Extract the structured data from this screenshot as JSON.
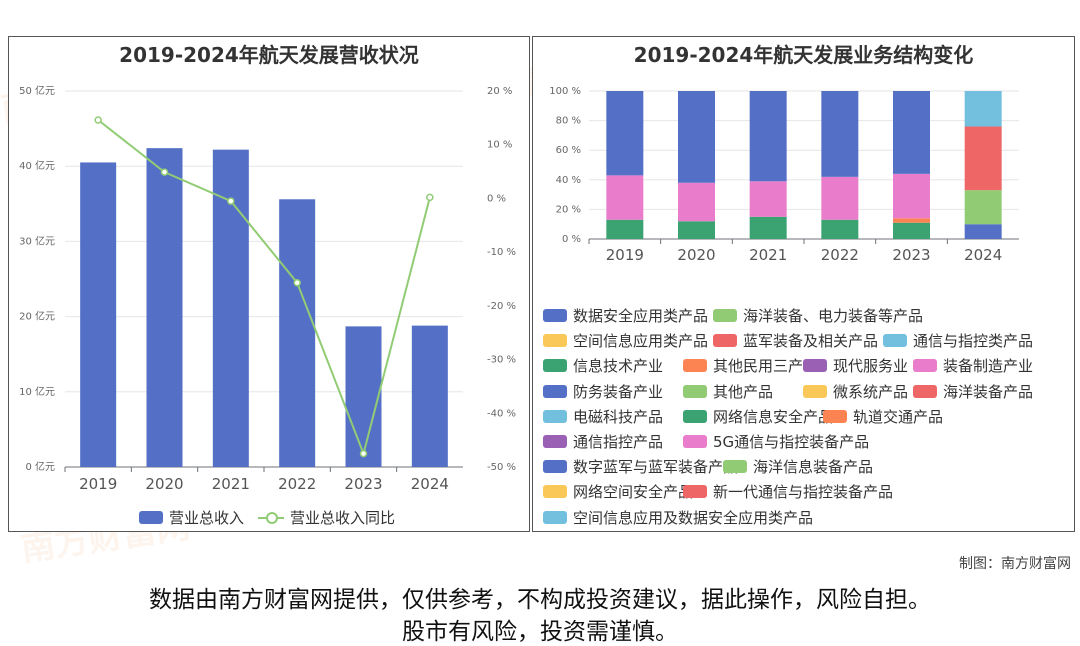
{
  "watermark": "南方财富网",
  "footer_credit": "制图：南方财富网",
  "disclaimer": {
    "line1": "数据由南方财富网提供，仅供参考，不构成投资建议，据此操作，风险自担。",
    "line2": "股市有风险，投资需谨慎。"
  },
  "chart_data": [
    {
      "type": "bar",
      "title": "2019-2024年航天发展营收状况",
      "categories": [
        "2019",
        "2020",
        "2021",
        "2022",
        "2023",
        "2024"
      ],
      "series": [
        {
          "name": "营业总收入",
          "type": "bar",
          "values": [
            40.5,
            42.4,
            42.2,
            35.6,
            18.7,
            18.8
          ],
          "color": "#5470c6"
        },
        {
          "name": "营业总收入同比",
          "type": "line",
          "axis": "right",
          "values": [
            14.6,
            4.9,
            -0.5,
            -15.7,
            -47.5,
            0.2
          ],
          "color": "#91cc75"
        }
      ],
      "y_left": {
        "ticks": [
          "0 亿元",
          "10 亿元",
          "20 亿元",
          "30 亿元",
          "40 亿元",
          "50 亿元"
        ],
        "ylim": [
          0,
          50
        ]
      },
      "y_right": {
        "ticks": [
          "-50 %",
          "-40 %",
          "-30 %",
          "-20 %",
          "-10 %",
          "0 %",
          "10 %",
          "20 %"
        ],
        "ylim": [
          -50,
          20
        ]
      },
      "legend": [
        {
          "label": "营业总收入",
          "color": "#5470c6"
        },
        {
          "label": "营业总收入同比",
          "color": "#91cc75"
        }
      ],
      "legend_position": "bottom"
    },
    {
      "type": "bar",
      "stacked": true,
      "title": "2019-2024年航天发展业务结构变化",
      "categories": [
        "2019",
        "2020",
        "2021",
        "2022",
        "2023",
        "2024"
      ],
      "y_ticks": [
        "0 %",
        "20 %",
        "40 %",
        "60 %",
        "80 %",
        "100 %"
      ],
      "ylim": [
        0,
        100
      ],
      "series": [
        {
          "name": "信息技术产业",
          "color": "#3ba272",
          "values": [
            13,
            12,
            15,
            13,
            11,
            0
          ]
        },
        {
          "name": "其他民用三产",
          "color": "#fc8452",
          "values": [
            0,
            0,
            0,
            0,
            3,
            0
          ]
        },
        {
          "name": "装备制造产业",
          "color": "#ea7ccc",
          "values": [
            30,
            26,
            24,
            29,
            30,
            0
          ]
        },
        {
          "name": "防务装备产业",
          "color": "#5470c6",
          "values": [
            57,
            62,
            61,
            58,
            56,
            0
          ]
        },
        {
          "name": "数字蓝军与蓝军装备产品",
          "color": "#5470c6",
          "values": [
            0,
            0,
            0,
            0,
            0,
            10
          ]
        },
        {
          "name": "海洋信息装备产品",
          "color": "#91cc75",
          "values": [
            0,
            0,
            0,
            0,
            0,
            23
          ]
        },
        {
          "name": "新一代通信与指控装备产品",
          "color": "#ee6666",
          "values": [
            0,
            0,
            0,
            0,
            0,
            43
          ]
        },
        {
          "name": "空间信息应用及数据安全应用类产品",
          "color": "#73c0de",
          "values": [
            0,
            0,
            0,
            0,
            0,
            24
          ]
        }
      ],
      "legend": [
        [
          "数据安全应用类产品",
          "#5470c6"
        ],
        [
          "海洋装备、电力装备等产品",
          "#91cc75"
        ],
        [
          "空间信息应用类产品",
          "#fac858"
        ],
        [
          "蓝军装备及相关产品",
          "#ee6666"
        ],
        [
          "通信与指控类产品",
          "#73c0de"
        ],
        [
          "信息技术产业",
          "#3ba272"
        ],
        [
          "其他民用三产",
          "#fc8452"
        ],
        [
          "现代服务业",
          "#9a60b4"
        ],
        [
          "装备制造产业",
          "#ea7ccc"
        ],
        [
          "防务装备产业",
          "#5470c6"
        ],
        [
          "其他产品",
          "#91cc75"
        ],
        [
          "微系统产品",
          "#fac858"
        ],
        [
          "海洋装备产品",
          "#ee6666"
        ],
        [
          "电磁科技产品",
          "#73c0de"
        ],
        [
          "网络信息安全产品",
          "#3ba272"
        ],
        [
          "轨道交通产品",
          "#fc8452"
        ],
        [
          "通信指控产品",
          "#9a60b4"
        ],
        [
          "5G通信与指控装备产品",
          "#ea7ccc"
        ],
        [
          "数字蓝军与蓝军装备产品",
          "#5470c6"
        ],
        [
          "海洋信息装备产品",
          "#91cc75"
        ],
        [
          "网络空间安全产品",
          "#fac858"
        ],
        [
          "新一代通信与指控装备产品",
          "#ee6666"
        ],
        [
          "空间信息应用及数据安全应用类产品",
          "#73c0de"
        ]
      ],
      "legend_position": "bottom"
    }
  ]
}
